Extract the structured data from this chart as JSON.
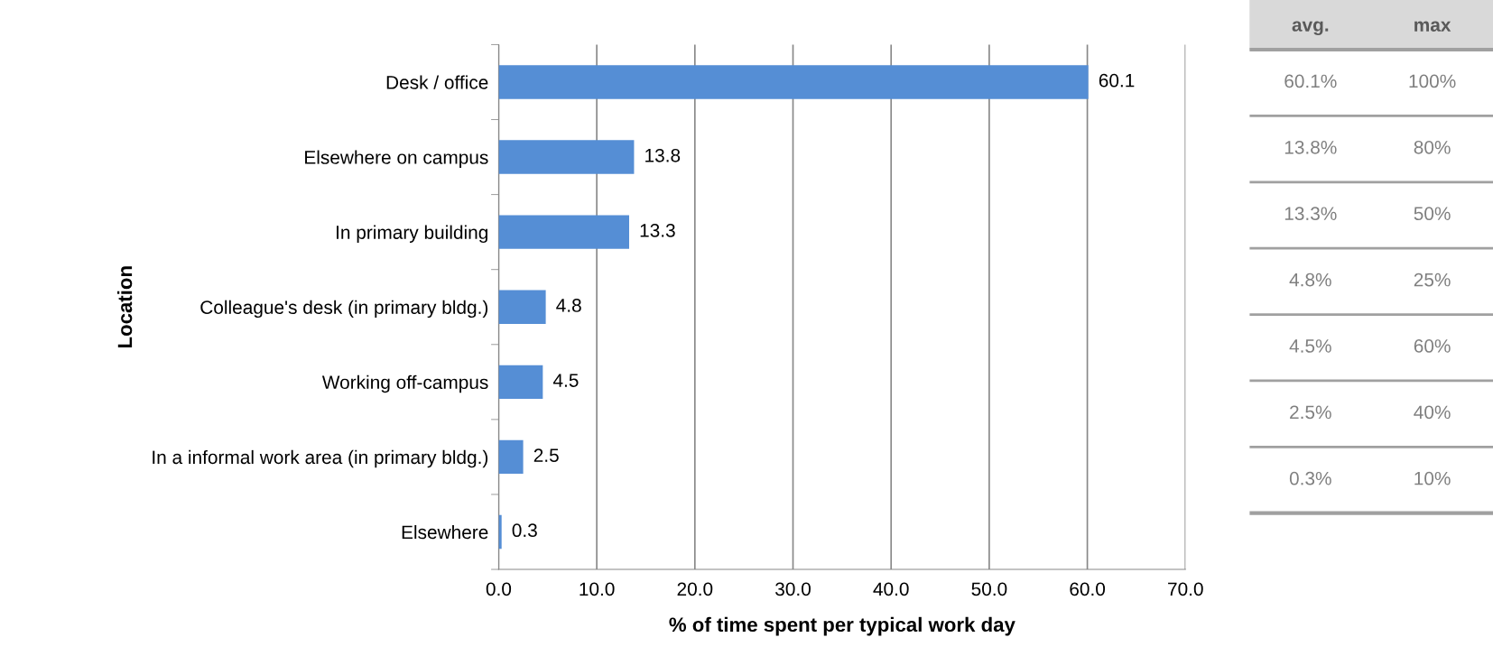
{
  "chart_data": [
    {
      "type": "bar",
      "orientation": "horizontal",
      "xlabel": "% of time spent per typical work day",
      "ylabel": "Location",
      "categories": [
        "Desk / office",
        "Elsewhere on campus",
        "In primary building",
        "Colleague's desk (in primary bldg.)",
        "Working off-campus",
        "In a informal work area (in primary bldg.)",
        "Elsewhere"
      ],
      "values": [
        60.1,
        13.8,
        13.3,
        4.8,
        4.5,
        2.5,
        0.3
      ],
      "color": "#558ed5",
      "value_labels": [
        "60.1",
        "13.8",
        "13.3",
        "4.8",
        "4.5",
        "2.5",
        "0.3"
      ],
      "xlim": [
        0,
        70
      ],
      "xticks": [
        {
          "value": 0,
          "label": "0.0"
        },
        {
          "value": 10,
          "label": "10.0"
        },
        {
          "value": 20,
          "label": "20.0"
        },
        {
          "value": 30,
          "label": "30.0"
        },
        {
          "value": 40,
          "label": "40.0"
        },
        {
          "value": 50,
          "label": "50.0"
        },
        {
          "value": 60,
          "label": "60.0"
        },
        {
          "value": 70,
          "label": "70.0"
        }
      ],
      "grid": "x",
      "legend": false
    },
    {
      "type": "other",
      "categories": [
        "avg.",
        "max"
      ],
      "annotations": [
        "60.1%",
        "100%",
        "13.8%",
        "80%",
        "13.3%",
        "50%",
        "4.8%",
        "25%",
        "4.5%",
        "60%",
        "2.5%",
        "40%",
        "0.3%",
        "10%"
      ]
    }
  ]
}
